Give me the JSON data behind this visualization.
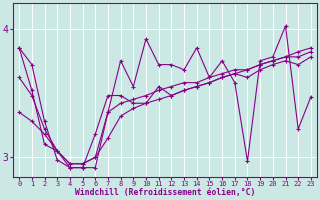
{
  "xlabel": "Windchill (Refroidissement éolien,°C)",
  "bg_color": "#cce8e4",
  "line_color": "#880088",
  "grid_color": "#ffffff",
  "axis_color": "#880088",
  "xlim": [
    -0.5,
    23.5
  ],
  "ylim": [
    2.85,
    4.2
  ],
  "yticks": [
    3,
    4
  ],
  "xticks": [
    0,
    1,
    2,
    3,
    4,
    5,
    6,
    7,
    8,
    9,
    10,
    11,
    12,
    13,
    14,
    15,
    16,
    17,
    18,
    19,
    20,
    21,
    22,
    23
  ],
  "series1_x": [
    0,
    1,
    2,
    3,
    4,
    5,
    6,
    7,
    8,
    9,
    10,
    11,
    12,
    13,
    14,
    15,
    16,
    17,
    18,
    19,
    20,
    21,
    22,
    23
  ],
  "series1_y": [
    3.85,
    3.72,
    3.28,
    2.98,
    2.92,
    2.92,
    2.92,
    3.35,
    3.75,
    3.55,
    3.92,
    3.72,
    3.72,
    3.68,
    3.85,
    3.62,
    3.75,
    3.58,
    2.97,
    3.75,
    3.78,
    4.02,
    3.22,
    3.47
  ],
  "series2_x": [
    0,
    1,
    2,
    3,
    4,
    5,
    6,
    7,
    8,
    9,
    10,
    11,
    12,
    13,
    14,
    15,
    16,
    17,
    18,
    19,
    20,
    21,
    22,
    23
  ],
  "series2_y": [
    3.85,
    3.52,
    3.1,
    3.05,
    2.92,
    2.92,
    3.18,
    3.48,
    3.48,
    3.42,
    3.42,
    3.55,
    3.48,
    3.52,
    3.55,
    3.58,
    3.62,
    3.65,
    3.62,
    3.68,
    3.72,
    3.75,
    3.72,
    3.78
  ],
  "series3_x": [
    0,
    1,
    2,
    3,
    4,
    5,
    6,
    7,
    8,
    9,
    10,
    11,
    12,
    13,
    14,
    15,
    16,
    17,
    18,
    19,
    20,
    21,
    22,
    23
  ],
  "series3_y": [
    3.62,
    3.48,
    3.22,
    3.05,
    2.95,
    2.95,
    3.0,
    3.35,
    3.42,
    3.45,
    3.48,
    3.52,
    3.55,
    3.58,
    3.58,
    3.62,
    3.65,
    3.68,
    3.68,
    3.72,
    3.75,
    3.78,
    3.78,
    3.82
  ],
  "series4_x": [
    0,
    1,
    2,
    3,
    4,
    5,
    6,
    7,
    8,
    9,
    10,
    11,
    12,
    13,
    14,
    15,
    16,
    17,
    18,
    19,
    20,
    21,
    22,
    23
  ],
  "series4_y": [
    3.35,
    3.28,
    3.18,
    3.05,
    2.95,
    2.95,
    3.0,
    3.15,
    3.32,
    3.38,
    3.42,
    3.45,
    3.48,
    3.52,
    3.55,
    3.58,
    3.62,
    3.65,
    3.68,
    3.72,
    3.75,
    3.78,
    3.82,
    3.85
  ]
}
